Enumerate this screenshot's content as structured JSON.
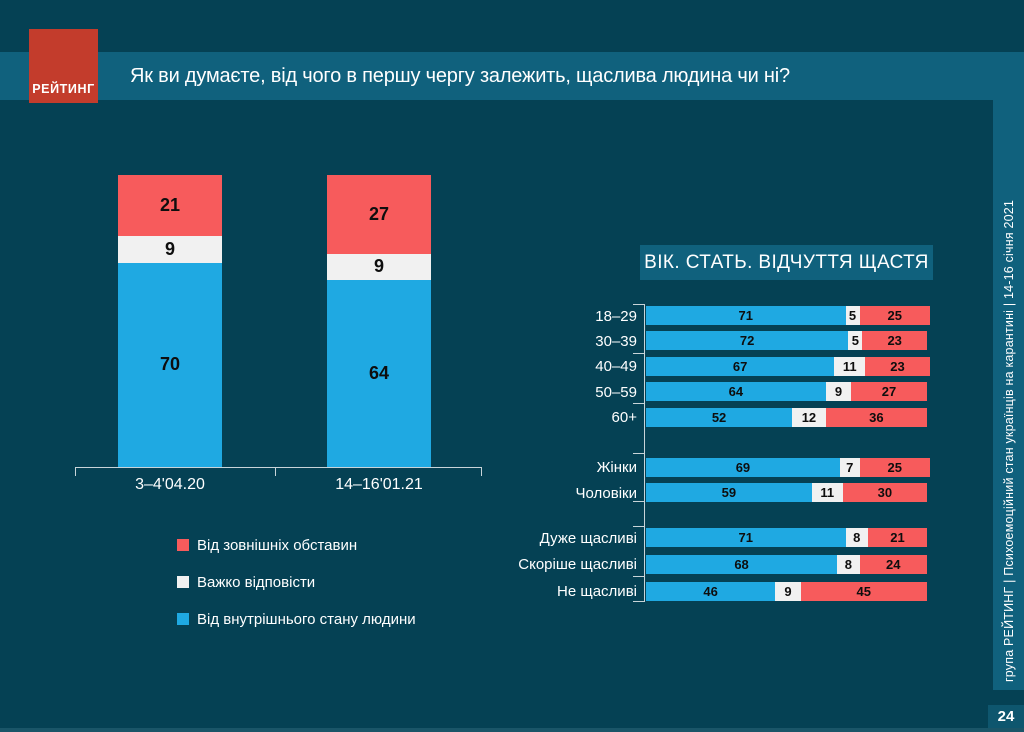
{
  "header": {
    "logo_text": "РЕЙТИНГ",
    "title": "Як ви думаєте, від чого в першу чергу залежить, щаслива людина чи ні?"
  },
  "sidebar": {
    "text": "група РЕЙТИНГ  |  Психоемоційний стан українців на карантині  |  14-16 січня 2021"
  },
  "footer": {
    "page_number": "24"
  },
  "colors": {
    "background": "#054154",
    "band": "#10617D",
    "logo_red": "#C33C2C",
    "internal": "#1FA9E2",
    "difficult": "#F1F1F1",
    "external": "#F75B5C",
    "axis": "#C9D4D9",
    "value_text": "#0E0E0E"
  },
  "legend": {
    "items": [
      {
        "label": "Від зовнішніх обставин",
        "color_key": "external"
      },
      {
        "label": "Важко відповісти",
        "color_key": "difficult"
      },
      {
        "label": "Від внутрішнього стану людини",
        "color_key": "internal"
      }
    ]
  },
  "chart_data": [
    {
      "type": "bar",
      "name": "happiness-dependence-trend",
      "stacked": true,
      "orientation": "vertical",
      "ylim": [
        0,
        100
      ],
      "categories": [
        "3–4'04.20",
        "14–16'01.21"
      ],
      "series": [
        {
          "name": "Від внутрішнього стану людини",
          "color_key": "internal",
          "values": [
            70,
            64
          ]
        },
        {
          "name": "Важко відповісти",
          "color_key": "difficult",
          "values": [
            9,
            9
          ]
        },
        {
          "name": "Від зовнішніх обставин",
          "color_key": "external",
          "values": [
            21,
            27
          ]
        }
      ]
    },
    {
      "type": "bar",
      "name": "happiness-by-demographics",
      "title": "ВІК. СТАТЬ. ВІДЧУТТЯ ЩАСТЯ",
      "stacked": true,
      "orientation": "horizontal",
      "xlim": [
        0,
        100
      ],
      "series_order": [
        "internal",
        "difficult",
        "external"
      ],
      "groups": [
        {
          "name": "age",
          "rows": [
            {
              "label": "18–29",
              "values": [
                71,
                5,
                25
              ]
            },
            {
              "label": "30–39",
              "values": [
                72,
                5,
                23
              ]
            },
            {
              "label": "40–49",
              "values": [
                67,
                11,
                23
              ]
            },
            {
              "label": "50–59",
              "values": [
                64,
                9,
                27
              ]
            },
            {
              "label": "60+",
              "values": [
                52,
                12,
                36
              ]
            }
          ]
        },
        {
          "name": "gender",
          "rows": [
            {
              "label": "Жінки",
              "values": [
                69,
                7,
                25
              ]
            },
            {
              "label": "Чоловіки",
              "values": [
                59,
                11,
                30
              ]
            }
          ]
        },
        {
          "name": "happiness",
          "rows": [
            {
              "label": "Дуже щасливі",
              "values": [
                71,
                8,
                21
              ]
            },
            {
              "label": "Скоріше щасливі",
              "values": [
                68,
                8,
                24
              ]
            },
            {
              "label": "Не щасливі",
              "values": [
                46,
                9,
                45
              ]
            }
          ]
        }
      ]
    }
  ]
}
